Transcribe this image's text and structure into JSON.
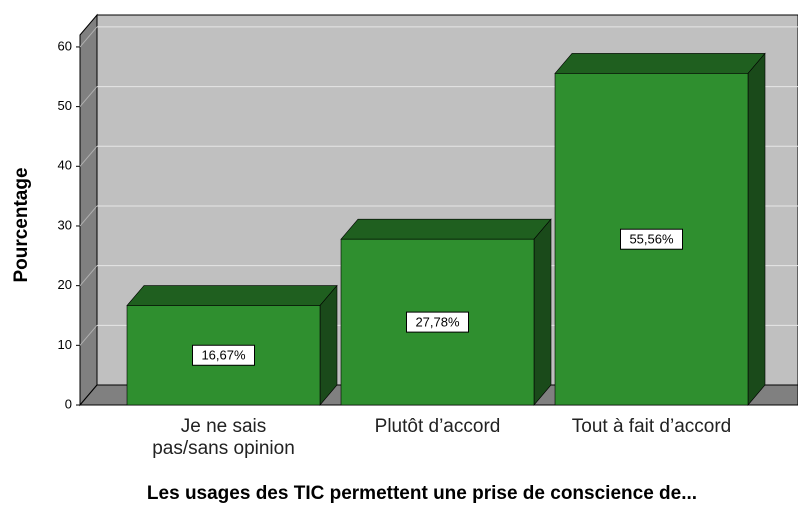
{
  "chart_data": {
    "type": "bar3d",
    "x_label": "Les usages des TIC permettent une prise de conscience de...",
    "y_label": "Pourcentage",
    "categories": [
      "Je ne sais\npas/sans opinion",
      "Plutôt d’accord",
      "Tout à fait d’accord"
    ],
    "values": [
      16.67,
      27.78,
      55.56
    ],
    "value_labels": [
      "16,67%",
      "27,78%",
      "55,56%"
    ],
    "color": "#2f8f2f",
    "ylim": [
      0,
      62
    ],
    "yticks": [
      0,
      10,
      20,
      30,
      40,
      50,
      60
    ],
    "grid": true
  }
}
